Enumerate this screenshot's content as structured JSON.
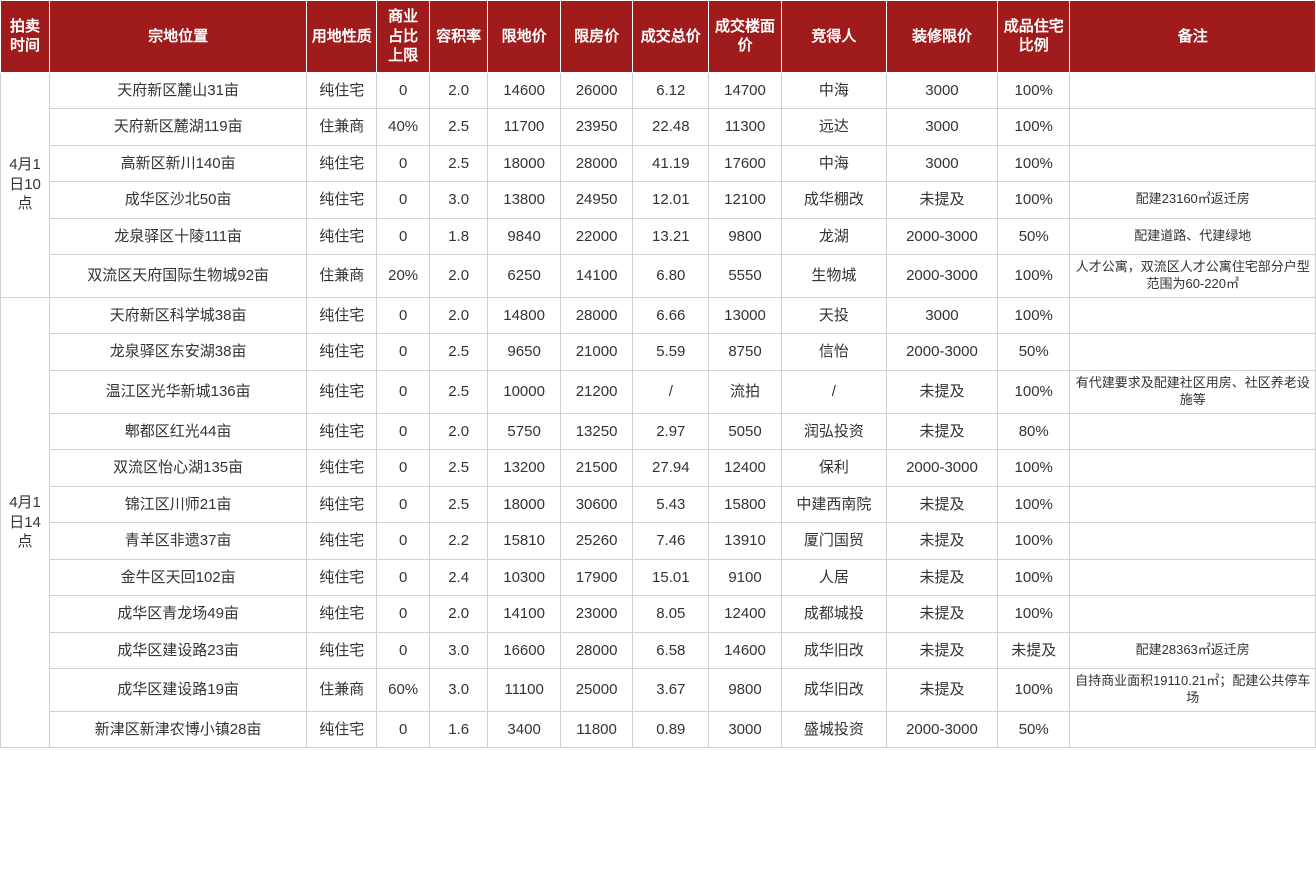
{
  "header_bg": "#a01c1c",
  "header_fg": "#ffffff",
  "cell_border": "#d0d0d0",
  "columns": [
    "拍卖时间",
    "宗地位置",
    "用地性质",
    "商业占比上限",
    "容积率",
    "限地价",
    "限房价",
    "成交总价",
    "成交楼面价",
    "竞得人",
    "装修限价",
    "成品住宅比例",
    "备注"
  ],
  "groups": [
    {
      "time": "4月1日10点",
      "rows": [
        {
          "loc": "天府新区麓山31亩",
          "nature": "纯住宅",
          "bizcap": "0",
          "far": "2.0",
          "land": "14600",
          "house": "26000",
          "total": "6.12",
          "floor": "14700",
          "bidder": "中海",
          "deco": "3000",
          "ratio": "100%",
          "remark": ""
        },
        {
          "loc": "天府新区麓湖119亩",
          "nature": "住兼商",
          "bizcap": "40%",
          "far": "2.5",
          "land": "11700",
          "house": "23950",
          "total": "22.48",
          "floor": "11300",
          "bidder": "远达",
          "deco": "3000",
          "ratio": "100%",
          "remark": ""
        },
        {
          "loc": "高新区新川140亩",
          "nature": "纯住宅",
          "bizcap": "0",
          "far": "2.5",
          "land": "18000",
          "house": "28000",
          "total": "41.19",
          "floor": "17600",
          "bidder": "中海",
          "deco": "3000",
          "ratio": "100%",
          "remark": ""
        },
        {
          "loc": "成华区沙北50亩",
          "nature": "纯住宅",
          "bizcap": "0",
          "far": "3.0",
          "land": "13800",
          "house": "24950",
          "total": "12.01",
          "floor": "12100",
          "bidder": "成华棚改",
          "deco": "未提及",
          "ratio": "100%",
          "remark": "配建23160㎡返迁房"
        },
        {
          "loc": "龙泉驿区十陵111亩",
          "nature": "纯住宅",
          "bizcap": "0",
          "far": "1.8",
          "land": "9840",
          "house": "22000",
          "total": "13.21",
          "floor": "9800",
          "bidder": "龙湖",
          "deco": "2000-3000",
          "ratio": "50%",
          "remark": "配建道路、代建绿地"
        },
        {
          "loc": "双流区天府国际生物城92亩",
          "nature": "住兼商",
          "bizcap": "20%",
          "far": "2.0",
          "land": "6250",
          "house": "14100",
          "total": "6.80",
          "floor": "5550",
          "bidder": "生物城",
          "deco": "2000-3000",
          "ratio": "100%",
          "remark": "人才公寓，双流区人才公寓住宅部分户型范围为60-220㎡"
        }
      ]
    },
    {
      "time": "4月1日14点",
      "rows": [
        {
          "loc": "天府新区科学城38亩",
          "nature": "纯住宅",
          "bizcap": "0",
          "far": "2.0",
          "land": "14800",
          "house": "28000",
          "total": "6.66",
          "floor": "13000",
          "bidder": "天投",
          "deco": "3000",
          "ratio": "100%",
          "remark": ""
        },
        {
          "loc": "龙泉驿区东安湖38亩",
          "nature": "纯住宅",
          "bizcap": "0",
          "far": "2.5",
          "land": "9650",
          "house": "21000",
          "total": "5.59",
          "floor": "8750",
          "bidder": "信怡",
          "deco": "2000-3000",
          "ratio": "50%",
          "remark": ""
        },
        {
          "loc": "温江区光华新城136亩",
          "nature": "纯住宅",
          "bizcap": "0",
          "far": "2.5",
          "land": "10000",
          "house": "21200",
          "total": "/",
          "floor": "流拍",
          "bidder": "/",
          "deco": "未提及",
          "ratio": "100%",
          "remark": "有代建要求及配建社区用房、社区养老设施等"
        },
        {
          "loc": "郫都区红光44亩",
          "nature": "纯住宅",
          "bizcap": "0",
          "far": "2.0",
          "land": "5750",
          "house": "13250",
          "total": "2.97",
          "floor": "5050",
          "bidder": "润弘投资",
          "deco": "未提及",
          "ratio": "80%",
          "remark": ""
        },
        {
          "loc": "双流区怡心湖135亩",
          "nature": "纯住宅",
          "bizcap": "0",
          "far": "2.5",
          "land": "13200",
          "house": "21500",
          "total": "27.94",
          "floor": "12400",
          "bidder": "保利",
          "deco": "2000-3000",
          "ratio": "100%",
          "remark": ""
        },
        {
          "loc": "锦江区川师21亩",
          "nature": "纯住宅",
          "bizcap": "0",
          "far": "2.5",
          "land": "18000",
          "house": "30600",
          "total": "5.43",
          "floor": "15800",
          "bidder": "中建西南院",
          "deco": "未提及",
          "ratio": "100%",
          "remark": ""
        },
        {
          "loc": "青羊区非遗37亩",
          "nature": "纯住宅",
          "bizcap": "0",
          "far": "2.2",
          "land": "15810",
          "house": "25260",
          "total": "7.46",
          "floor": "13910",
          "bidder": "厦门国贸",
          "deco": "未提及",
          "ratio": "100%",
          "remark": ""
        },
        {
          "loc": "金牛区天回102亩",
          "nature": "纯住宅",
          "bizcap": "0",
          "far": "2.4",
          "land": "10300",
          "house": "17900",
          "total": "15.01",
          "floor": "9100",
          "bidder": "人居",
          "deco": "未提及",
          "ratio": "100%",
          "remark": ""
        },
        {
          "loc": "成华区青龙场49亩",
          "nature": "纯住宅",
          "bizcap": "0",
          "far": "2.0",
          "land": "14100",
          "house": "23000",
          "total": "8.05",
          "floor": "12400",
          "bidder": "成都城投",
          "deco": "未提及",
          "ratio": "100%",
          "remark": ""
        },
        {
          "loc": "成华区建设路23亩",
          "nature": "纯住宅",
          "bizcap": "0",
          "far": "3.0",
          "land": "16600",
          "house": "28000",
          "total": "6.58",
          "floor": "14600",
          "bidder": "成华旧改",
          "deco": "未提及",
          "ratio": "未提及",
          "remark": "配建28363㎡返迁房"
        },
        {
          "loc": "成华区建设路19亩",
          "nature": "住兼商",
          "bizcap": "60%",
          "far": "3.0",
          "land": "11100",
          "house": "25000",
          "total": "3.67",
          "floor": "9800",
          "bidder": "成华旧改",
          "deco": "未提及",
          "ratio": "100%",
          "remark": "自持商业面积19110.21㎡；配建公共停车场"
        },
        {
          "loc": "新津区新津农博小镇28亩",
          "nature": "纯住宅",
          "bizcap": "0",
          "far": "1.6",
          "land": "3400",
          "house": "11800",
          "total": "0.89",
          "floor": "3000",
          "bidder": "盛城投资",
          "deco": "2000-3000",
          "ratio": "50%",
          "remark": ""
        }
      ]
    }
  ]
}
